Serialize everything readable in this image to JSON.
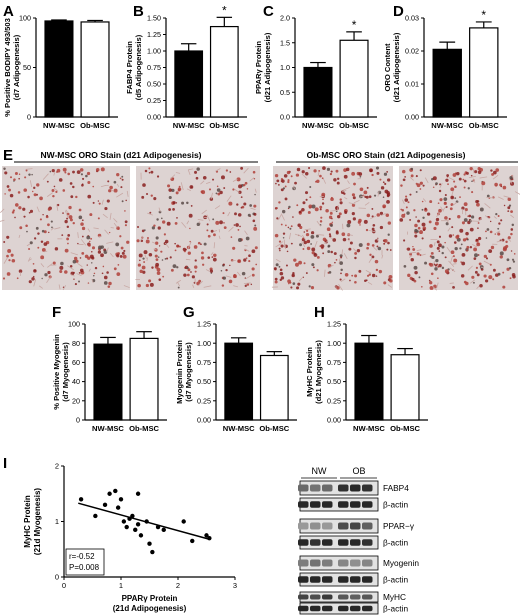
{
  "chart_data": [
    {
      "panel": "A",
      "type": "bar",
      "categories": [
        "NW-MSC",
        "Ob-MSC"
      ],
      "values": [
        97,
        96
      ],
      "errors": [
        1,
        1.5
      ],
      "ylabel": [
        "% Positive BODIPY 493/503",
        "(d7 Adipogenesis)"
      ],
      "ylim": [
        0,
        100
      ],
      "yticks": [
        "0",
        "50",
        "100"
      ],
      "sig": [
        false,
        false
      ]
    },
    {
      "panel": "B",
      "type": "bar",
      "categories": [
        "NW-MSC",
        "Ob-MSC"
      ],
      "values": [
        1.0,
        1.37
      ],
      "errors": [
        0.11,
        0.14
      ],
      "ylabel": [
        "FABP4 Protein",
        "(d5 Adipogenesis)"
      ],
      "ylim": [
        0,
        1.5
      ],
      "yticks": [
        "0.00",
        "0.25",
        "0.50",
        "0.75",
        "1.00",
        "1.25",
        "1.50"
      ],
      "sig": [
        false,
        true
      ]
    },
    {
      "panel": "C",
      "type": "bar",
      "categories": [
        "NW-MSC",
        "Ob-MSC"
      ],
      "values": [
        1.0,
        1.55
      ],
      "errors": [
        0.1,
        0.17
      ],
      "ylabel": [
        "PPARγ Protein",
        "(d21 Adipogenesis)"
      ],
      "ylim": [
        0,
        2
      ],
      "yticks": [
        "0.0",
        "0.5",
        "1.0",
        "1.5",
        "2.0"
      ],
      "sig": [
        false,
        true
      ]
    },
    {
      "panel": "D",
      "type": "bar",
      "categories": [
        "NW-MSC",
        "Ob-MSC"
      ],
      "values": [
        0.0205,
        0.027
      ],
      "errors": [
        0.0022,
        0.0018
      ],
      "ylabel": [
        "ORO Content",
        "(d21 Adipogenesis)"
      ],
      "ylim": [
        0,
        0.03
      ],
      "yticks": [
        "0.00",
        "0.01",
        "0.02",
        "0.03"
      ],
      "sig": [
        false,
        true
      ]
    },
    {
      "panel": "F",
      "type": "bar",
      "categories": [
        "NW-MSC",
        "Ob-MSC"
      ],
      "values": [
        79,
        85
      ],
      "errors": [
        7,
        7
      ],
      "ylabel": [
        "% Positive Myogenin",
        "(d7 Myogenesis)"
      ],
      "ylim": [
        0,
        100
      ],
      "yticks": [
        "0",
        "20",
        "40",
        "60",
        "80",
        "100"
      ],
      "sig": [
        false,
        false
      ]
    },
    {
      "panel": "G",
      "type": "bar",
      "categories": [
        "NW-MSC",
        "Ob-MSC"
      ],
      "values": [
        1.0,
        0.84
      ],
      "errors": [
        0.07,
        0.05
      ],
      "ylabel": [
        "Myogenin Protein",
        "(d7 Myogenesis)"
      ],
      "ylim": [
        0,
        1.25
      ],
      "yticks": [
        "0.00",
        "0.25",
        "0.50",
        "0.75",
        "1.00",
        "1.25"
      ],
      "sig": [
        false,
        false
      ]
    },
    {
      "panel": "H",
      "type": "bar",
      "categories": [
        "NW-MSC",
        "Ob-MSC"
      ],
      "values": [
        1.0,
        0.85
      ],
      "errors": [
        0.1,
        0.08
      ],
      "ylabel": [
        "MyHC Protein",
        "(d21 Myogenesis)"
      ],
      "ylim": [
        0,
        1.25
      ],
      "yticks": [
        "0.00",
        "0.25",
        "0.50",
        "0.75",
        "1.00",
        "1.25"
      ],
      "sig": [
        false,
        false
      ]
    },
    {
      "panel": "I",
      "type": "scatter",
      "xlabel": [
        "PPARγ Protein",
        "(21d Adipogenesis)"
      ],
      "ylabel": [
        "MyHC Protein",
        "(21d Myogenesis)"
      ],
      "xlim": [
        0,
        3
      ],
      "ylim": [
        0,
        2
      ],
      "xticks": [
        "0",
        "1",
        "2",
        "3"
      ],
      "yticks": [
        "0",
        "1",
        "2"
      ],
      "stats": [
        "r=-0.52",
        "P=0.008"
      ],
      "points": [
        [
          0.3,
          1.4
        ],
        [
          0.55,
          1.1
        ],
        [
          0.72,
          1.3
        ],
        [
          0.8,
          1.5
        ],
        [
          0.9,
          1.55
        ],
        [
          0.95,
          1.25
        ],
        [
          1.0,
          1.4
        ],
        [
          1.05,
          1.0
        ],
        [
          1.1,
          0.9
        ],
        [
          1.15,
          1.05
        ],
        [
          1.2,
          1.1
        ],
        [
          1.25,
          0.85
        ],
        [
          1.3,
          1.5
        ],
        [
          1.3,
          0.95
        ],
        [
          1.35,
          0.75
        ],
        [
          1.45,
          1.0
        ],
        [
          1.5,
          0.6
        ],
        [
          1.55,
          0.45
        ],
        [
          1.65,
          0.9
        ],
        [
          1.75,
          0.85
        ],
        [
          2.1,
          1.0
        ],
        [
          2.25,
          0.65
        ],
        [
          2.5,
          0.75
        ],
        [
          2.55,
          0.7
        ]
      ],
      "fit": [
        [
          0.25,
          1.33
        ],
        [
          2.55,
          0.68
        ]
      ]
    }
  ],
  "panel_labels": {
    "A": "A",
    "B": "B",
    "C": "C",
    "D": "D",
    "E": "E",
    "F": "F",
    "G": "G",
    "H": "H",
    "I": "I"
  },
  "stain": {
    "nw_title": "NW-MSC ORO Stain (d21 Adipogenesis)",
    "ob_title": "Ob-MSC ORO Stain (d21 Adipogenesis)"
  },
  "blot": {
    "group_labels": [
      "NW",
      "OB"
    ],
    "rows": [
      "FABP4",
      "β-actin",
      "PPAR−γ",
      "β-actin",
      "Myogenin",
      "β-actin",
      "MyHC",
      "β-actin"
    ]
  },
  "colors": {
    "nw_bar": "#000000",
    "ob_bar": "#ffffff",
    "stain_bg": "#ddd3d2",
    "stain_dot": "#8a1e1e",
    "fit_line": "#000000"
  }
}
